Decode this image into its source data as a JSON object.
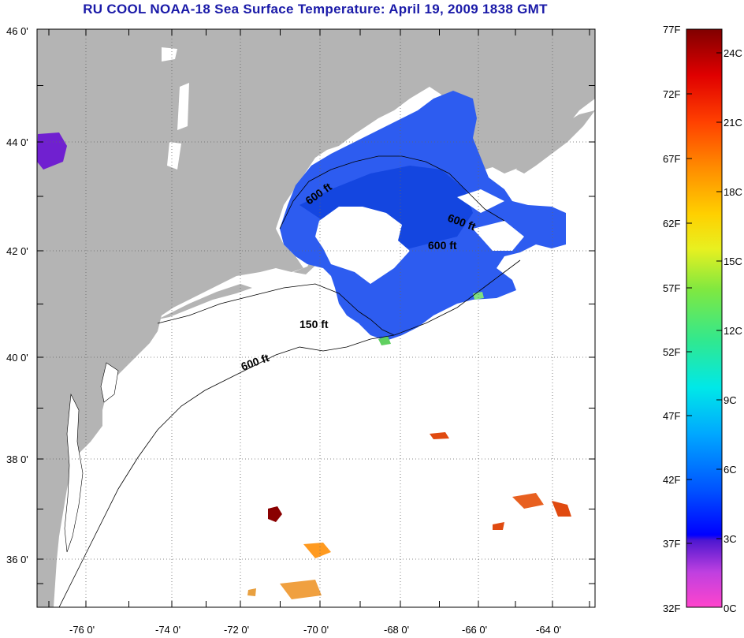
{
  "title": "RU COOL  NOAA-18  Sea Surface Temperature:  April 19, 2009 1838 GMT",
  "latitude_labels": [
    "46 0'",
    "44 0'",
    "42 0'",
    "40 0'",
    "38 0'",
    "36 0'"
  ],
  "longitude_labels": [
    "-76 0'",
    "-74 0'",
    "-72 0'",
    "-70 0'",
    "-68 0'",
    "-66 0'",
    "-64 0'"
  ],
  "contour_labels": [
    "600 ft",
    "600 ft",
    "600 ft",
    "150 ft",
    "600 ft"
  ],
  "colorbar": {
    "fahrenheit_labels": [
      "77F",
      "72F",
      "67F",
      "62F",
      "57F",
      "52F",
      "47F",
      "42F",
      "37F",
      "32F"
    ],
    "celsius_labels": [
      "24C",
      "21C",
      "18C",
      "15C",
      "12C",
      "9C",
      "6C",
      "3C",
      "0C"
    ],
    "range_f": [
      32,
      77
    ],
    "range_c": [
      0,
      25
    ]
  },
  "colors": {
    "land": "#b4b4b4",
    "ocean_no_data": "#ffffff",
    "cold_water": "#2d5cf0",
    "warm_water": "#e0501a",
    "title": "#1a1aa8"
  }
}
